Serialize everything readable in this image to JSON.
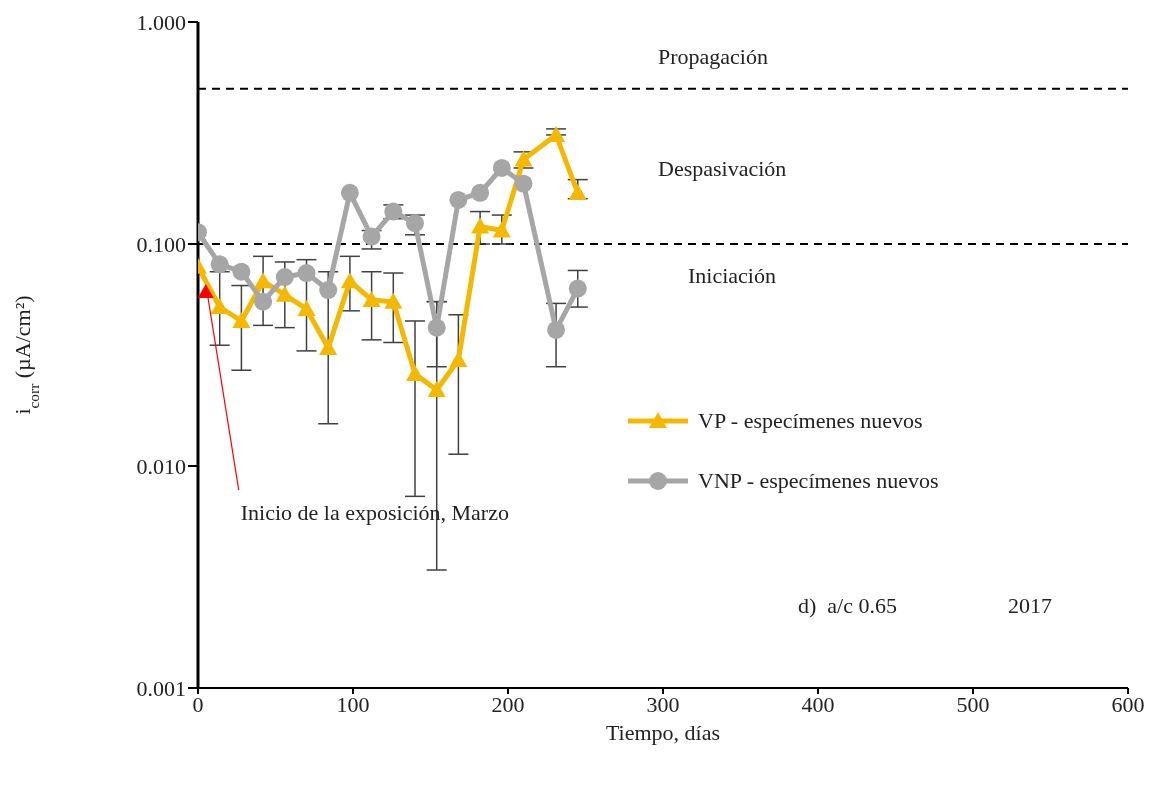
{
  "chart_data": {
    "type": "line",
    "xlabel": "Tiempo, días",
    "ylabel": "i$_{corr}$ (µA/cm²)",
    "x": [
      0,
      14,
      28,
      42,
      56,
      70,
      84,
      98,
      112,
      126,
      140,
      154,
      168,
      182,
      196,
      210,
      231,
      245
    ],
    "series": [
      {
        "name": "VP - especímenes nuevos",
        "color": "#f5b800",
        "marker": "triangle",
        "values": [
          0.079,
          0.052,
          0.045,
          0.068,
          0.059,
          0.051,
          0.034,
          0.068,
          0.056,
          0.055,
          0.026,
          0.022,
          0.03,
          0.12,
          0.115,
          0.24,
          0.31,
          0.17
        ],
        "errors": [
          null,
          [
            0.035,
            0.075
          ],
          [
            0.027,
            0.065
          ],
          [
            0.043,
            0.088
          ],
          [
            0.042,
            0.083
          ],
          [
            0.033,
            0.085
          ],
          [
            0.0155,
            0.075
          ],
          [
            0.05,
            0.088
          ],
          [
            0.037,
            0.075
          ],
          [
            0.036,
            0.074
          ],
          [
            0.0073,
            0.045
          ],
          [
            0.0034,
            0.055
          ],
          [
            0.0113,
            0.048
          ],
          [
            0.1,
            0.14
          ],
          [
            0.1,
            0.135
          ],
          [
            0.22,
            0.26
          ],
          [
            0.31,
            0.33
          ],
          [
            0.16,
            0.195
          ]
        ]
      },
      {
        "name": "VNP - especímenes nuevos",
        "color": "#a6a6a6",
        "marker": "circle",
        "values": [
          0.113,
          0.081,
          0.075,
          0.055,
          0.071,
          0.074,
          0.062,
          0.17,
          0.108,
          0.14,
          0.124,
          0.042,
          0.158,
          0.17,
          0.22,
          0.187,
          0.041,
          0.063
        ],
        "errors": [
          null,
          null,
          null,
          null,
          null,
          null,
          null,
          null,
          [
            0.095,
            0.115
          ],
          [
            0.13,
            0.15
          ],
          [
            0.11,
            0.135
          ],
          [
            0.028,
            0.055
          ],
          null,
          null,
          null,
          null,
          [
            0.028,
            0.054
          ],
          [
            0.052,
            0.076
          ]
        ]
      }
    ],
    "xlim": [
      0,
      600
    ],
    "xticks": [
      0,
      100,
      200,
      300,
      400,
      500,
      600
    ],
    "ylim": [
      0.001,
      1
    ],
    "yticks": [
      {
        "value": 0.001,
        "label": "0.001"
      },
      {
        "value": 0.01,
        "label": "0.010"
      },
      {
        "value": 0.1,
        "label": "0.100"
      },
      {
        "value": 1,
        "label": "1.000"
      }
    ],
    "log": "y",
    "legend": "right",
    "line_style": "solid",
    "ref_lines": [
      {
        "axis": "y",
        "value": 0.1,
        "line_style": "dashed",
        "color": "#000000"
      },
      {
        "axis": "y",
        "value": 0.5,
        "line_style": "dashed",
        "color": "#000000"
      }
    ],
    "annotations": [
      "Propagación",
      "Despasivación",
      "Iniciación",
      {
        "text": "Inicio de la exposición, Marzo",
        "x": 5,
        "y": 0.062
      },
      "d)  a/c 0.65",
      "2017"
    ]
  }
}
